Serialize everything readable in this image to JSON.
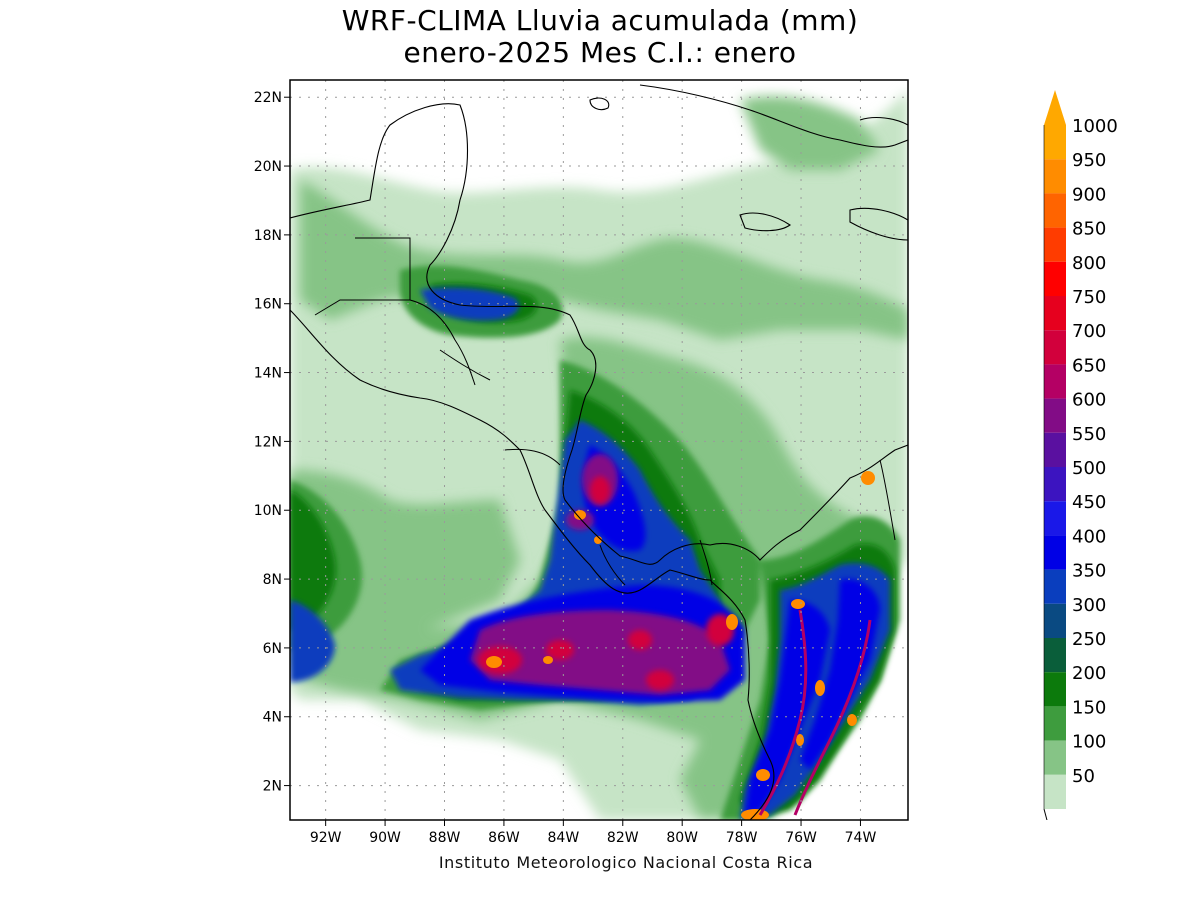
{
  "title": {
    "line1": "WRF-CLIMA Lluvia acumulada (mm)",
    "line2": "enero-2025 Mes C.I.: enero"
  },
  "credit": "Instituto Meteorologico Nacional Costa Rica",
  "axes": {
    "lat_labels": [
      "2N",
      "4N",
      "6N",
      "8N",
      "10N",
      "12N",
      "14N",
      "16N",
      "18N",
      "20N",
      "22N"
    ],
    "lat_values": [
      2,
      4,
      6,
      8,
      10,
      12,
      14,
      16,
      18,
      20,
      22
    ],
    "lon_labels": [
      "92W",
      "90W",
      "88W",
      "86W",
      "84W",
      "82W",
      "80W",
      "78W",
      "76W",
      "74W"
    ],
    "lon_values": [
      -92,
      -90,
      -88,
      -86,
      -84,
      -82,
      -80,
      -78,
      -76,
      -74
    ],
    "lat_range": [
      1,
      22.5
    ],
    "lon_range": [
      -93.2,
      -72.4
    ],
    "grid": "dotted"
  },
  "legend": {
    "labels": [
      "50",
      "100",
      "150",
      "200",
      "250",
      "300",
      "350",
      "400",
      "450",
      "500",
      "550",
      "600",
      "650",
      "700",
      "750",
      "800",
      "850",
      "900",
      "950",
      "1000"
    ],
    "colors": [
      "#ffffff",
      "#c6e4c6",
      "#86c486",
      "#3e9c3e",
      "#0c7a0c",
      "#0a5e3a",
      "#0a4a82",
      "#0a3ebe",
      "#0000e6",
      "#1a18e8",
      "#3c14c0",
      "#5a10a0",
      "#820c86",
      "#b40064",
      "#d2003c",
      "#e6001e",
      "#ff0000",
      "#ff3c00",
      "#ff6400",
      "#ff8c00",
      "#ffa800"
    ]
  },
  "regions": [
    {
      "name": "mexico-gulf-band",
      "level": 1
    },
    {
      "name": "caribbean-wide",
      "level": 1
    },
    {
      "name": "pacific-itcz",
      "level": 2
    },
    {
      "name": "central-caribbean-core",
      "level": 3
    },
    {
      "name": "pacific-heavy-core",
      "level": 7
    },
    {
      "name": "colombia-coast-heavy",
      "level": 9
    }
  ]
}
